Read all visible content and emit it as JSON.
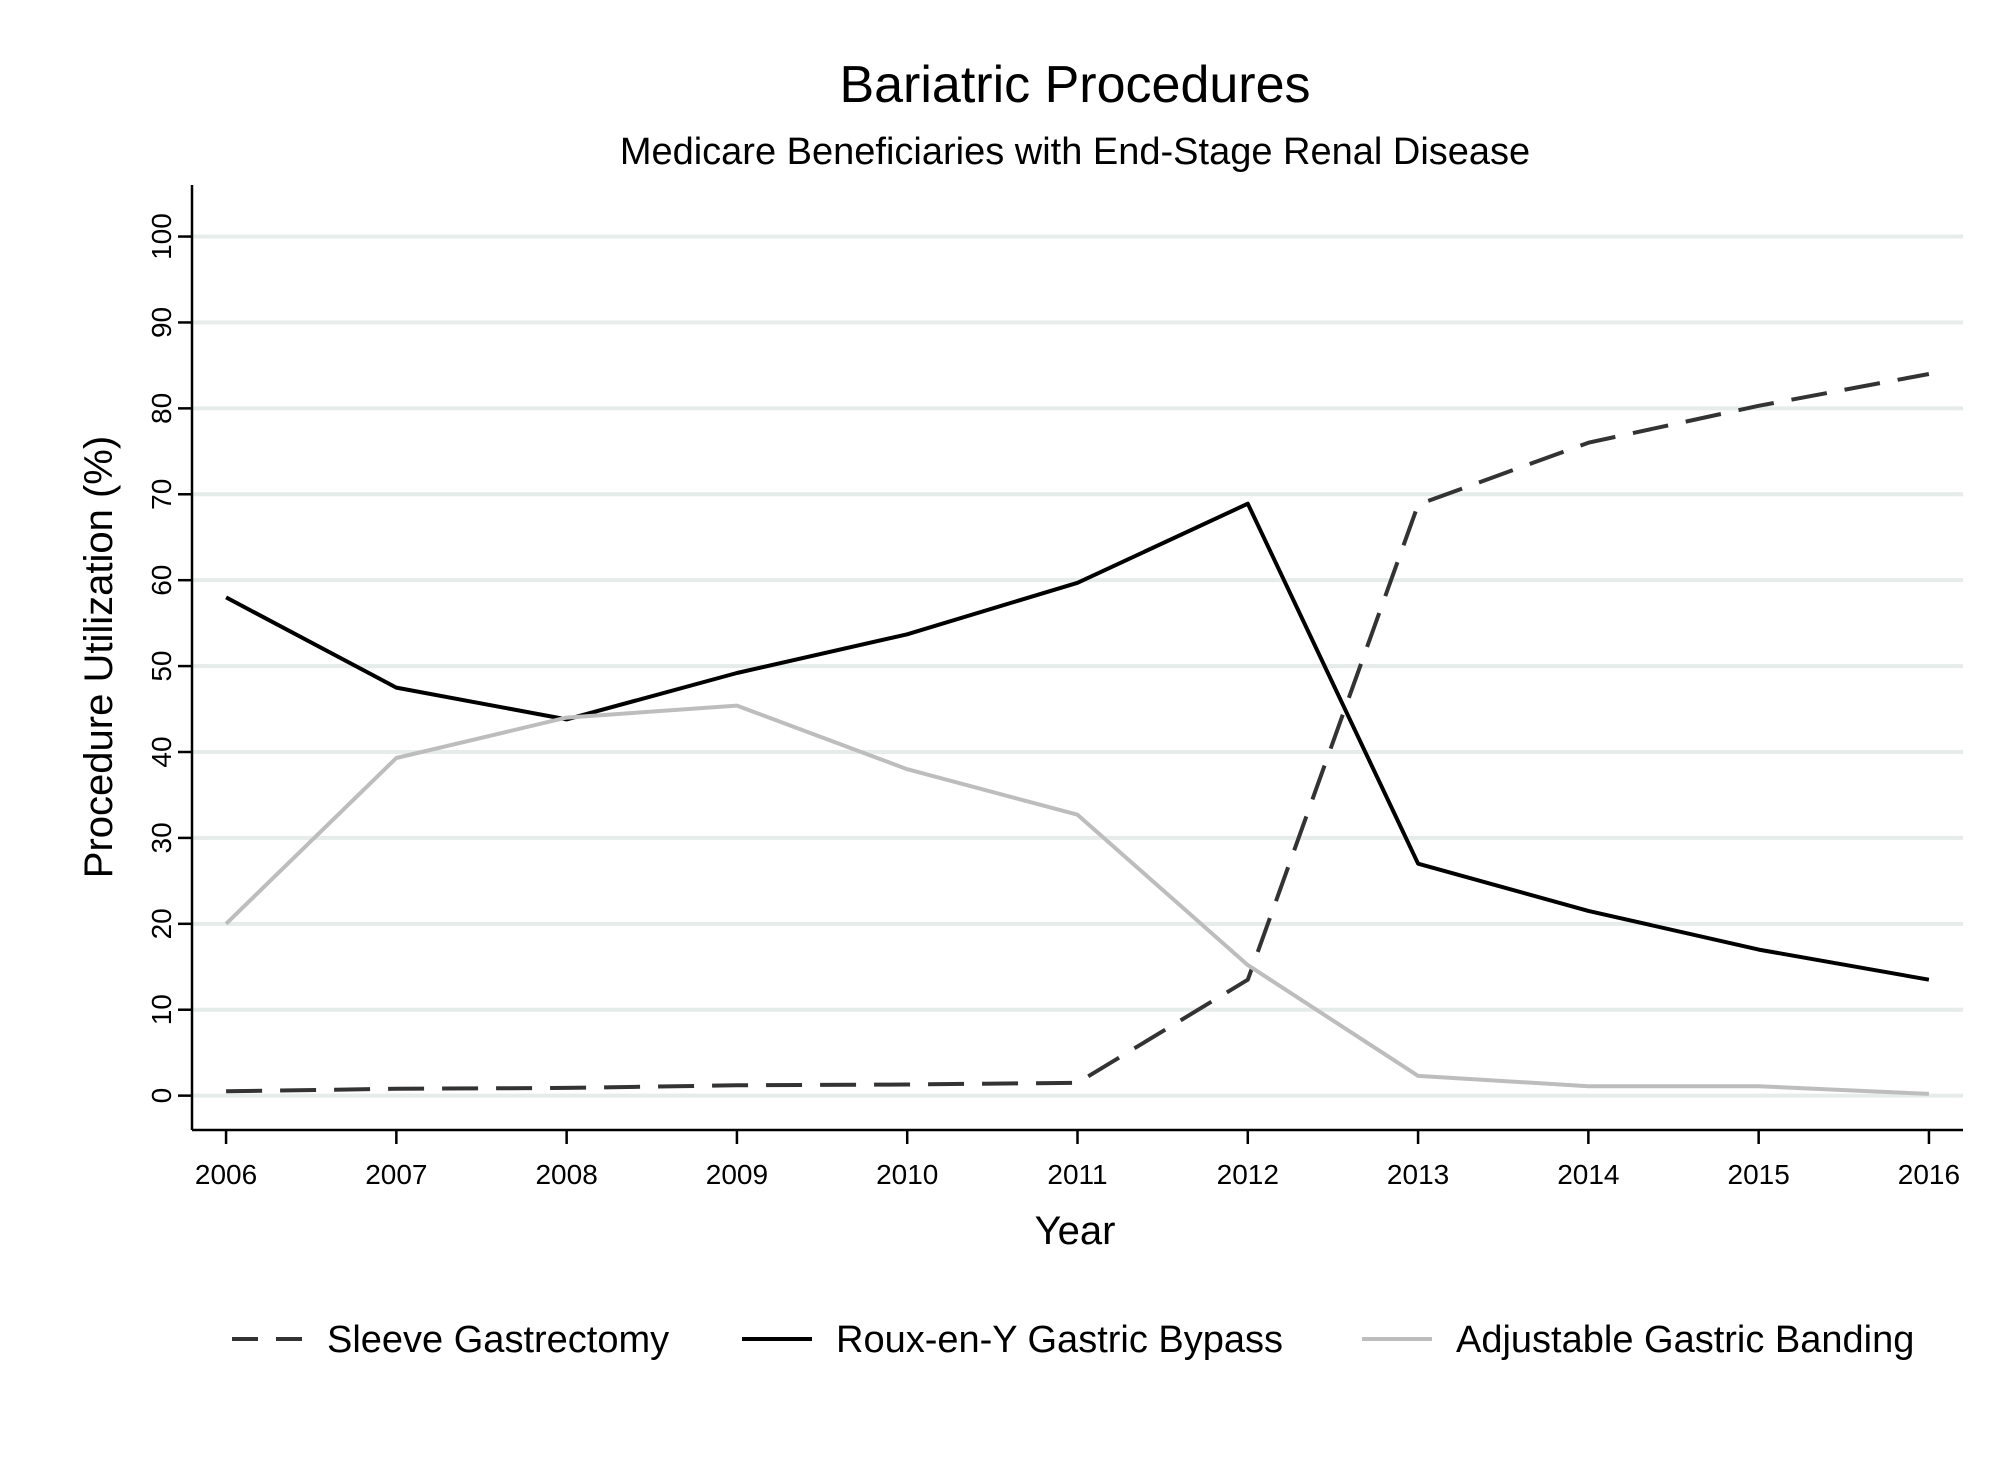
{
  "chart_data": {
    "type": "line",
    "title": "Bariatric Procedures",
    "subtitle": "Medicare Beneficiaries with End-Stage Renal Disease",
    "xlabel": "Year",
    "ylabel": "Procedure Utilization (%)",
    "x": [
      2006,
      2007,
      2008,
      2009,
      2010,
      2011,
      2012,
      2013,
      2014,
      2015,
      2016
    ],
    "xlim": [
      2005.8,
      2016.2
    ],
    "ylim": [
      -4,
      106
    ],
    "yticks": [
      0,
      10,
      20,
      30,
      40,
      50,
      60,
      70,
      80,
      90,
      100
    ],
    "grid": true,
    "legend_position": "bottom",
    "series": [
      {
        "name": "Sleeve Gastrectomy",
        "style": "dashed",
        "color": "#333333",
        "values": [
          0.5,
          0.8,
          0.9,
          1.2,
          1.3,
          1.5,
          13.5,
          68.8,
          76.0,
          80.3,
          84.0
        ]
      },
      {
        "name": "Roux-en-Y Gastric Bypass",
        "style": "solid",
        "color": "#000000",
        "values": [
          58.0,
          47.5,
          43.8,
          49.2,
          53.7,
          59.7,
          68.9,
          27.0,
          21.5,
          17.0,
          13.5
        ]
      },
      {
        "name": "Adjustable Gastric Banding",
        "style": "solid",
        "color": "#bdbdbd",
        "values": [
          20.0,
          39.3,
          44.0,
          45.4,
          38.0,
          32.7,
          15.2,
          2.3,
          1.1,
          1.1,
          0.2
        ]
      }
    ]
  }
}
